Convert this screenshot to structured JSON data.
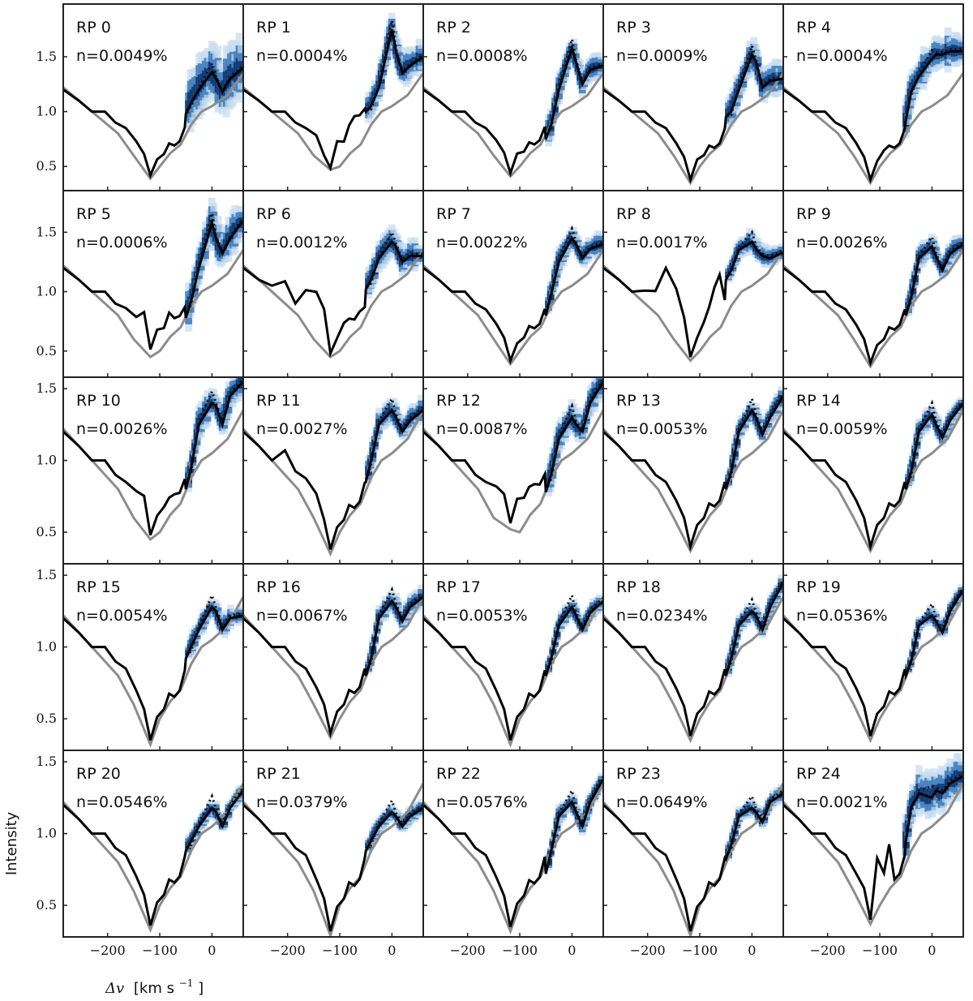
{
  "figure": {
    "ylabel": "Intensity",
    "xlabel_symbol": "Δv",
    "xlabel_units": "[km s",
    "xlabel_exponent": "−1",
    "xlabel_close": "]"
  },
  "colors": {
    "observed": "#000000",
    "model": "#8c8c8c",
    "inversion_dark": "#08306b",
    "inversion_mid": "#3a78b8",
    "inversion_light": "#c6dbef"
  },
  "chart_data": {
    "type": "line",
    "rows": 5,
    "cols": 5,
    "xlim": [
      -285,
      60
    ],
    "xticks": [
      -200,
      -100,
      0
    ],
    "xtick_labels": [
      "−200",
      "−100",
      "0"
    ],
    "row_ylims": [
      [
        0.28,
        1.98
      ],
      [
        0.28,
        1.85
      ],
      [
        0.28,
        1.58
      ],
      [
        0.28,
        1.58
      ],
      [
        0.28,
        1.58
      ]
    ],
    "row_yticks": [
      [
        0.5,
        1.0,
        1.5
      ],
      [
        0.5,
        1.0,
        1.5
      ],
      [
        0.5,
        1.0,
        1.5
      ],
      [
        0.5,
        1.0,
        1.5
      ],
      [
        0.5,
        1.0,
        1.5
      ]
    ],
    "row_ytick_labels": [
      [
        "0.5",
        "1.0",
        "1.5"
      ],
      [
        "0.5",
        "1.0",
        "1.5"
      ],
      [
        "0.5",
        "1.0",
        "1.5"
      ],
      [
        "0.5",
        "1.0",
        "1.5"
      ],
      [
        "0.5",
        "1.0",
        "1.5"
      ]
    ],
    "panels": [
      {
        "label": "RP 0",
        "n": "n=0.0049%",
        "bottom": 0.42,
        "extra": [],
        "post": [
          0.98,
          1.08,
          1.2,
          1.36,
          1.3,
          1.18,
          1.3,
          1.4
        ],
        "spread": 0.55,
        "win": -45
      },
      {
        "label": "RP 1",
        "n": "n=0.0004%",
        "bottom": 0.5,
        "extra": [
          [
            -150,
            0.03
          ],
          [
            -128,
            -0.08
          ],
          [
            -100,
            0.18
          ],
          [
            -75,
            0.3
          ],
          [
            -58,
            0.3
          ]
        ],
        "post": [
          1.0,
          1.05,
          1.22,
          1.75,
          1.55,
          1.35,
          1.42,
          1.5
        ],
        "spread": 0.3,
        "win": -45
      },
      {
        "label": "RP 2",
        "n": "n=0.0008%",
        "bottom": 0.44,
        "extra": [
          [
            -102,
            0.05
          ]
        ],
        "post": [
          0.75,
          0.88,
          1.2,
          1.58,
          1.45,
          1.25,
          1.38,
          1.42
        ],
        "spread": 0.25,
        "win": -45
      },
      {
        "label": "RP 3",
        "n": "n=0.0009%",
        "bottom": 0.38,
        "extra": [
          [
            -100,
            0.05
          ]
        ],
        "post": [
          0.95,
          1.0,
          1.2,
          1.52,
          1.45,
          1.22,
          1.28,
          1.3
        ],
        "spread": 0.3,
        "win": -45
      },
      {
        "label": "RP 4",
        "n": "n=0.0004%",
        "bottom": 0.38,
        "extra": [
          [
            -95,
            0.08
          ]
        ],
        "post": [
          0.92,
          1.18,
          1.32,
          1.48,
          1.52,
          1.52,
          1.55,
          1.55
        ],
        "spread": 0.35,
        "win": -50
      },
      {
        "label": "RP 5",
        "n": "n=0.0006%",
        "bottom": 0.48,
        "extra": [
          [
            -160,
            0.02
          ],
          [
            -140,
            0.05
          ],
          [
            -128,
            0.2
          ],
          [
            -100,
            0.12
          ],
          [
            -80,
            0.1
          ],
          [
            -65,
            0.05
          ]
        ],
        "post": [
          0.78,
          0.92,
          1.2,
          1.58,
          1.45,
          1.32,
          1.45,
          1.6
        ],
        "spread": 0.35,
        "win": -45
      },
      {
        "label": "RP 6",
        "n": "n=0.0012%",
        "bottom": 0.48,
        "extra": [
          [
            -230,
            0.05
          ],
          [
            -200,
            0.15
          ],
          [
            -170,
            0.28
          ],
          [
            -148,
            0.32
          ],
          [
            -130,
            0.2
          ],
          [
            -90,
            0.1
          ],
          [
            -65,
            0.1
          ]
        ],
        "post": [
          1.02,
          1.1,
          1.28,
          1.42,
          1.38,
          1.25,
          1.3,
          1.3
        ],
        "spread": 0.25,
        "win": -45
      },
      {
        "label": "RP 7",
        "n": "n=0.0022%",
        "bottom": 0.42,
        "extra": [],
        "post": [
          0.8,
          0.98,
          1.25,
          1.45,
          1.4,
          1.28,
          1.36,
          1.4
        ],
        "spread": 0.2,
        "win": -45
      },
      {
        "label": "RP 8",
        "n": "n=0.0017%",
        "bottom": 0.45,
        "extra": [
          [
            -215,
            0.05
          ],
          [
            -190,
            0.18
          ],
          [
            -165,
            0.35
          ],
          [
            -145,
            0.28
          ],
          [
            -130,
            0.15
          ],
          [
            -95,
            0.15
          ],
          [
            -75,
            0.35
          ],
          [
            -62,
            0.4
          ]
        ],
        "post": [
          1.1,
          1.18,
          1.35,
          1.42,
          1.36,
          1.3,
          1.28,
          1.33
        ],
        "spread": 0.2,
        "win": -45
      },
      {
        "label": "RP 9",
        "n": "n=0.0026%",
        "bottom": 0.4,
        "extra": [],
        "post": [
          0.8,
          0.95,
          1.28,
          1.38,
          1.3,
          1.18,
          1.32,
          1.4
        ],
        "spread": 0.2,
        "win": -45
      },
      {
        "label": "RP 10",
        "n": "n=0.0026%",
        "bottom": 0.48,
        "extra": [
          [
            -150,
            0.05
          ],
          [
            -130,
            0.1
          ],
          [
            -95,
            0.03
          ],
          [
            -70,
            0.05
          ]
        ],
        "post": [
          0.8,
          0.95,
          1.25,
          1.4,
          1.38,
          1.25,
          1.45,
          1.55
        ],
        "spread": 0.22,
        "win": -45
      },
      {
        "label": "RP 11",
        "n": "n=0.0027%",
        "bottom": 0.38,
        "extra": [
          [
            -200,
            0.12
          ],
          [
            -175,
            0.15
          ],
          [
            -150,
            0.1
          ]
        ],
        "post": [
          0.85,
          1.0,
          1.25,
          1.35,
          1.3,
          1.2,
          1.28,
          1.35
        ],
        "spread": 0.18,
        "win": -45
      },
      {
        "label": "RP 12",
        "n": "n=0.0087%",
        "bottom": 0.55,
        "extra": [
          [
            -150,
            0.05
          ],
          [
            -128,
            0.08
          ],
          [
            -100,
            0.12
          ],
          [
            -75,
            0.1
          ],
          [
            -60,
            0.05
          ]
        ],
        "post": [
          0.78,
          0.9,
          1.15,
          1.3,
          1.25,
          1.2,
          1.4,
          1.55
        ],
        "spread": 0.22,
        "win": -45
      },
      {
        "label": "RP 13",
        "n": "n=0.0053%",
        "bottom": 0.4,
        "extra": [],
        "post": [
          0.8,
          0.92,
          1.2,
          1.35,
          1.3,
          1.18,
          1.3,
          1.45
        ],
        "spread": 0.15,
        "win": -45
      },
      {
        "label": "RP 14",
        "n": "n=0.0059%",
        "bottom": 0.4,
        "extra": [],
        "post": [
          0.8,
          0.92,
          1.2,
          1.32,
          1.25,
          1.16,
          1.28,
          1.4
        ],
        "spread": 0.15,
        "win": -45
      },
      {
        "label": "RP 15",
        "n": "n=0.0054%",
        "bottom": 0.35,
        "extra": [],
        "post": [
          0.92,
          1.0,
          1.12,
          1.28,
          1.25,
          1.12,
          1.2,
          1.22
        ],
        "spread": 0.15,
        "win": -45
      },
      {
        "label": "RP 16",
        "n": "n=0.0067%",
        "bottom": 0.4,
        "extra": [],
        "post": [
          0.8,
          0.92,
          1.2,
          1.32,
          1.28,
          1.18,
          1.28,
          1.35
        ],
        "spread": 0.15,
        "win": -45
      },
      {
        "label": "RP 17",
        "n": "n=0.0053%",
        "bottom": 0.35,
        "extra": [],
        "post": [
          0.8,
          0.92,
          1.15,
          1.28,
          1.22,
          1.12,
          1.24,
          1.32
        ],
        "spread": 0.13,
        "win": -45
      },
      {
        "label": "RP 18",
        "n": "n=0.0234%",
        "bottom": 0.38,
        "extra": [],
        "post": [
          0.8,
          0.92,
          1.15,
          1.25,
          1.22,
          1.12,
          1.28,
          1.45
        ],
        "spread": 0.13,
        "win": -45
      },
      {
        "label": "RP 19",
        "n": "n=0.0536%",
        "bottom": 0.38,
        "extra": [],
        "post": [
          0.8,
          0.9,
          1.15,
          1.22,
          1.18,
          1.1,
          1.25,
          1.4
        ],
        "spread": 0.12,
        "win": -45
      },
      {
        "label": "RP 20",
        "n": "n=0.0546%",
        "bottom": 0.36,
        "extra": [],
        "post": [
          0.88,
          0.95,
          1.05,
          1.18,
          1.15,
          1.05,
          1.18,
          1.3
        ],
        "spread": 0.12,
        "win": -45
      },
      {
        "label": "RP 21",
        "n": "n=0.0379%",
        "bottom": 0.32,
        "extra": [],
        "post": [
          0.88,
          0.95,
          1.05,
          1.15,
          1.12,
          1.05,
          1.12,
          1.18
        ],
        "spread": 0.12,
        "win": -45
      },
      {
        "label": "RP 22",
        "n": "n=0.0576%",
        "bottom": 0.35,
        "extra": [],
        "post": [
          0.72,
          0.88,
          1.12,
          1.22,
          1.15,
          1.05,
          1.22,
          1.38
        ],
        "spread": 0.13,
        "win": -45
      },
      {
        "label": "RP 23",
        "n": "n=0.0649%",
        "bottom": 0.32,
        "extra": [],
        "post": [
          0.82,
          0.92,
          1.12,
          1.18,
          1.15,
          1.08,
          1.22,
          1.28
        ],
        "spread": 0.12,
        "win": -45
      },
      {
        "label": "RP 24",
        "n": "n=0.0021%",
        "bottom": 0.4,
        "extra": [
          [
            -130,
            0.02
          ],
          [
            -105,
            0.28
          ],
          [
            -85,
            0.3
          ]
        ],
        "post": [
          0.95,
          1.18,
          1.28,
          1.25,
          1.3,
          1.28,
          1.35,
          1.4
        ],
        "spread": 0.3,
        "win": -50
      }
    ]
  }
}
